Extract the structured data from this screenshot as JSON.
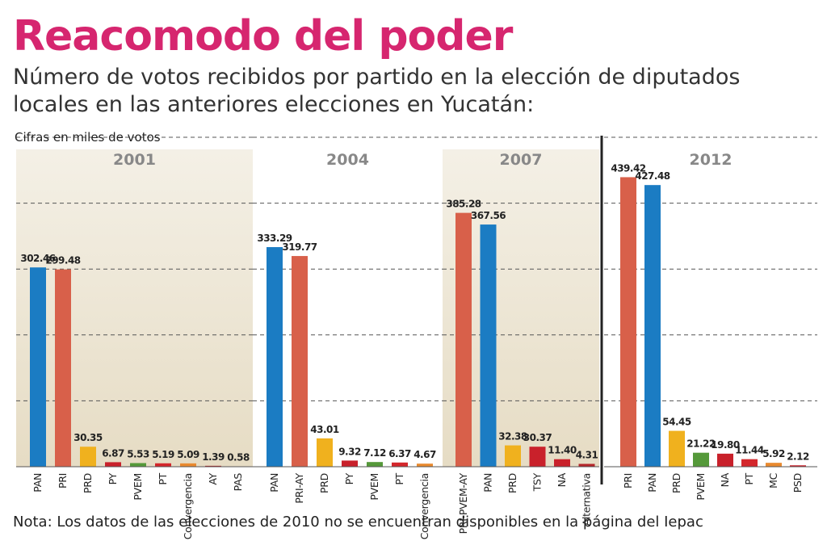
{
  "title": "Reacomodo del poder",
  "subtitle": [
    "Número de votos recibidos por partido en la elección de diputados",
    "locales en las anteriores elecciones en Yucatán:"
  ],
  "unit_label": "Cifras en miles de votos",
  "note": "Nota: Los datos de las elecciones de 2010 no se encuentran disponibles en la página del Iepac",
  "chart_data": [
    {
      "type": "bar",
      "title": "2001",
      "shaded": true,
      "categories": [
        "PAN",
        "PRI",
        "PRD",
        "PY",
        "PVEM",
        "PT",
        "Convergencia",
        "AY",
        "PAS"
      ],
      "values": [
        302.46,
        299.48,
        30.35,
        6.87,
        5.53,
        5.19,
        5.09,
        1.39,
        0.58
      ],
      "value_labels": [
        "302.46",
        "299.48",
        "30.35",
        "6.87",
        "5.53",
        "5.19",
        "5.09",
        "1.39",
        "0.58"
      ],
      "colors": [
        "#1b7cc3",
        "#d8604a",
        "#f0b11e",
        "#c9212b",
        "#55993a",
        "#d4272c",
        "#e98a2f",
        "#b5262b",
        "#b5262b"
      ],
      "ylim": [
        0,
        500
      ],
      "yticks": [
        100,
        200,
        300,
        400,
        500
      ]
    },
    {
      "type": "bar",
      "title": "2004",
      "shaded": false,
      "categories": [
        "PAN",
        "PRI-AY",
        "PRD",
        "PY",
        "PVEM",
        "PT",
        "Convergencia"
      ],
      "values": [
        333.29,
        319.77,
        43.01,
        9.32,
        7.12,
        6.37,
        4.67
      ],
      "value_labels": [
        "333.29",
        "319.77",
        "43.01",
        "9.32",
        "7.12",
        "6.37",
        "4.67"
      ],
      "colors": [
        "#1b7cc3",
        "#d8604a",
        "#f0b11e",
        "#c9212b",
        "#55993a",
        "#d4272c",
        "#e98a2f"
      ],
      "ylim": [
        0,
        500
      ],
      "yticks": [
        100,
        200,
        300,
        400,
        500
      ]
    },
    {
      "type": "bar",
      "title": "2007",
      "shaded": true,
      "categories": [
        "PRI-PVEM-AY",
        "PAN",
        "PRD",
        "TSY",
        "NA",
        "Alternativa"
      ],
      "values": [
        385.28,
        367.56,
        32.38,
        30.37,
        11.4,
        4.31
      ],
      "value_labels": [
        "385.28",
        "367.56",
        "32.38",
        "30.37",
        "11.40",
        "4.31"
      ],
      "colors": [
        "#d8604a",
        "#1b7cc3",
        "#f0b11e",
        "#c9212b",
        "#c9212b",
        "#b5262b"
      ],
      "ylim": [
        0,
        500
      ],
      "yticks": [
        100,
        200,
        300,
        400,
        500
      ]
    },
    {
      "type": "bar",
      "title": "2012",
      "shaded": false,
      "categories": [
        "PRI",
        "PAN",
        "PRD",
        "PVEM",
        "NA",
        "PT",
        "MC",
        "PSD"
      ],
      "values": [
        439.42,
        427.48,
        54.45,
        21.22,
        19.8,
        11.44,
        5.92,
        2.12
      ],
      "value_labels": [
        "439.42",
        "427.48",
        "54.45",
        "21.22",
        "19.80",
        "11.44",
        "5.92",
        "2.12"
      ],
      "colors": [
        "#d8604a",
        "#1b7cc3",
        "#f0b11e",
        "#55993a",
        "#c9212b",
        "#d4272c",
        "#e98a2f",
        "#c9212b"
      ],
      "ylim": [
        0,
        500
      ],
      "yticks": [
        100,
        200,
        300,
        400,
        500
      ]
    }
  ]
}
